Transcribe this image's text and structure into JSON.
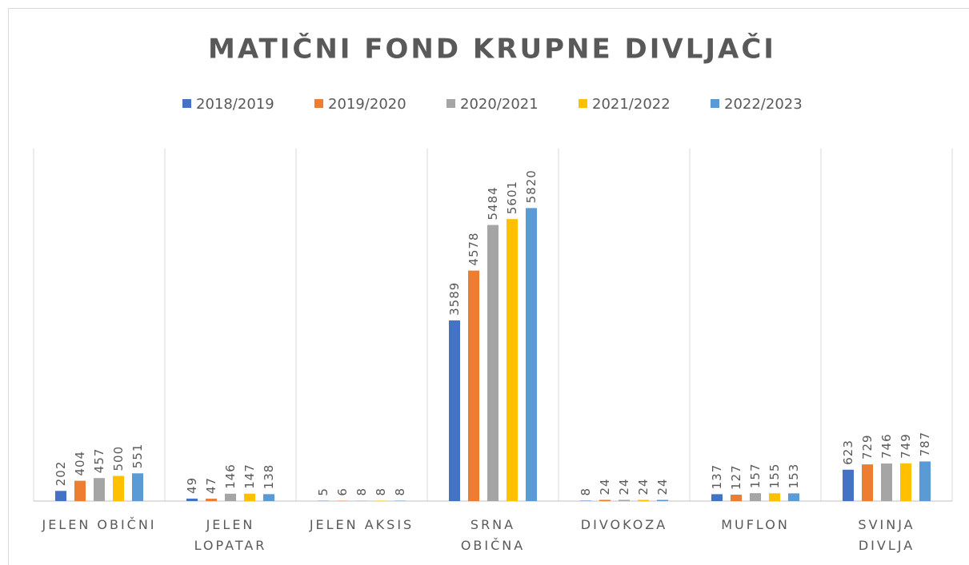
{
  "chart_data": {
    "type": "bar",
    "title": "MATIČNI FOND KRUPNE DIVLJAČI",
    "categories": [
      "JELEN OBIČNI",
      "JELEN\nLOPATAR",
      "JELEN AKSIS",
      "SRNA\nOBIČNA",
      "DIVOKOZA",
      "MUFLON",
      "SVINJA\nDIVLJA"
    ],
    "series": [
      {
        "name": "2018/2019",
        "color": "#4472c4",
        "values": [
          202,
          49,
          5,
          3589,
          8,
          137,
          623
        ]
      },
      {
        "name": "2019/2020",
        "color": "#ed7d31",
        "values": [
          404,
          47,
          6,
          4578,
          24,
          127,
          729
        ]
      },
      {
        "name": "2020/2021",
        "color": "#a5a5a5",
        "values": [
          457,
          146,
          8,
          5484,
          24,
          157,
          746
        ]
      },
      {
        "name": "2021/2022",
        "color": "#ffc000",
        "values": [
          500,
          147,
          8,
          5601,
          24,
          155,
          749
        ]
      },
      {
        "name": "2022/2023",
        "color": "#5b9bd5",
        "values": [
          551,
          138,
          8,
          5820,
          24,
          153,
          787
        ]
      }
    ],
    "ylim": [
      0,
      7000
    ],
    "legend": "top"
  }
}
